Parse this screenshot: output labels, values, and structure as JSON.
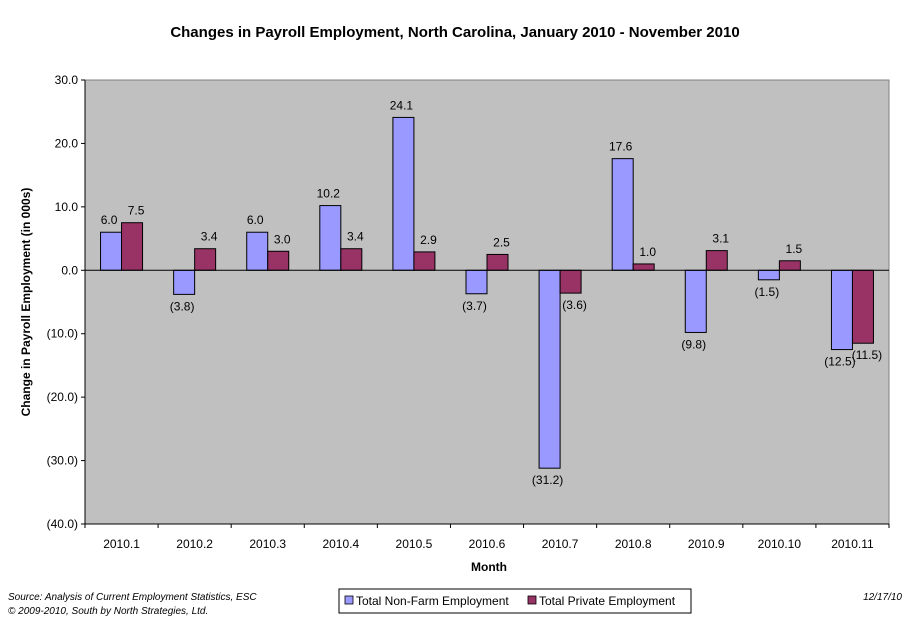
{
  "chart_data": {
    "type": "bar",
    "title": "Changes in Payroll Employment, North Carolina, January 2010 - November 2010",
    "xlabel": "Month",
    "ylabel": "Change in Payroll Employment (in 000s)",
    "ylim": [
      -40,
      30
    ],
    "yticks": [
      30,
      20,
      10,
      0,
      -10,
      -20,
      -30,
      -40
    ],
    "ytick_labels": [
      "30.0",
      "20.0",
      "10.0",
      "0.0",
      "(10.0)",
      "(20.0)",
      "(30.0)",
      "(40.0)"
    ],
    "categories": [
      "2010.1",
      "2010.2",
      "2010.3",
      "2010.4",
      "2010.5",
      "2010.6",
      "2010.7",
      "2010.8",
      "2010.9",
      "2010.10",
      "2010.11"
    ],
    "series": [
      {
        "name": "Total Non-Farm Employment",
        "color": "#9999FF",
        "values": [
          6.0,
          -3.8,
          6.0,
          10.2,
          24.1,
          -3.7,
          -31.2,
          17.6,
          -9.8,
          -1.5,
          -12.5
        ],
        "labels": [
          "6.0",
          "(3.8)",
          "6.0",
          "10.2",
          "24.1",
          "(3.7)",
          "(31.2)",
          "17.6",
          "(9.8)",
          "(1.5)",
          "(12.5)"
        ]
      },
      {
        "name": "Total Private Employment",
        "color": "#993366",
        "values": [
          7.5,
          3.4,
          3.0,
          3.4,
          2.9,
          2.5,
          -3.6,
          1.0,
          3.1,
          1.5,
          -11.5
        ],
        "labels": [
          "7.5",
          "3.4",
          "3.0",
          "3.4",
          "2.9",
          "2.5",
          "(3.6)",
          "1.0",
          "3.1",
          "1.5",
          "(11.5)"
        ]
      }
    ],
    "grid": false,
    "plot_background": "#C0C0C0",
    "legend_position": "bottom"
  },
  "footer": {
    "source_line1": "Source: Analysis of Current Employment Statistics, ESC",
    "source_line2": "© 2009-2010, South by North Strategies, Ltd.",
    "date": "12/17/10"
  }
}
